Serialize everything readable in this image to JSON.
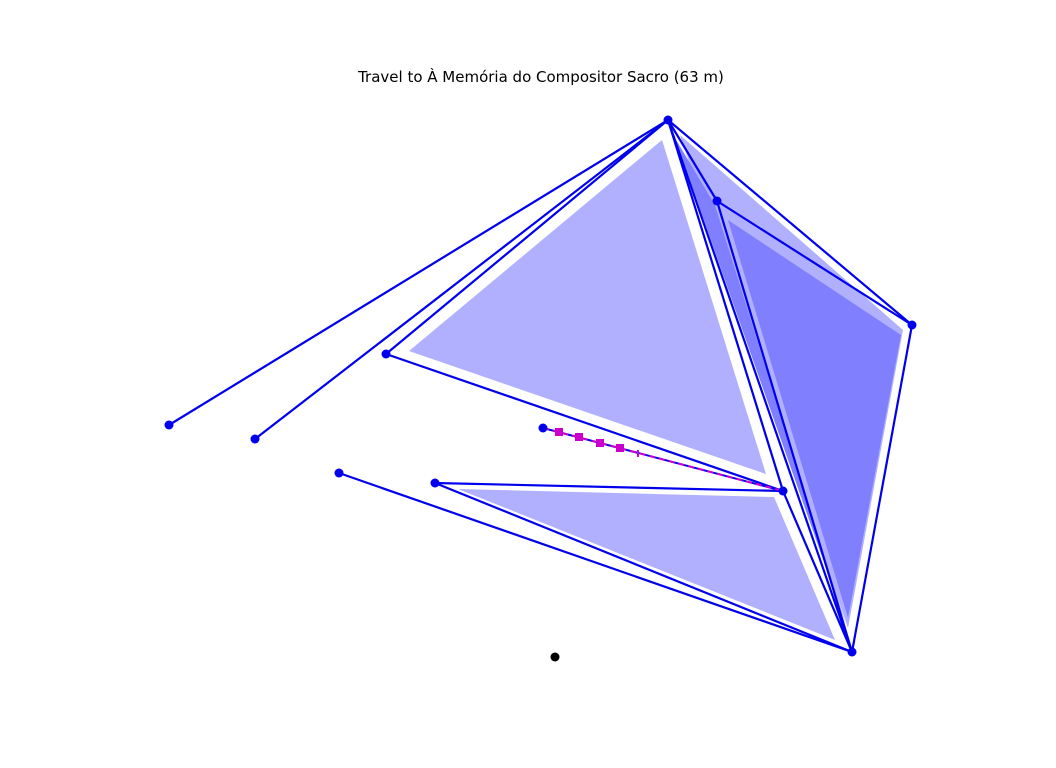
{
  "title": "Travel to À Memória do Compositor Sacro (63 m)",
  "colors": {
    "edge": "#0000ee",
    "fill_light": "#b0b0ff",
    "fill_dark": "#8080ff",
    "node": "#0000ee",
    "route": "#cc00cc",
    "origin": "#000000"
  },
  "icons": {
    "node": "circle-marker",
    "waypoint": "square-marker",
    "origin": "black-dot"
  }
}
